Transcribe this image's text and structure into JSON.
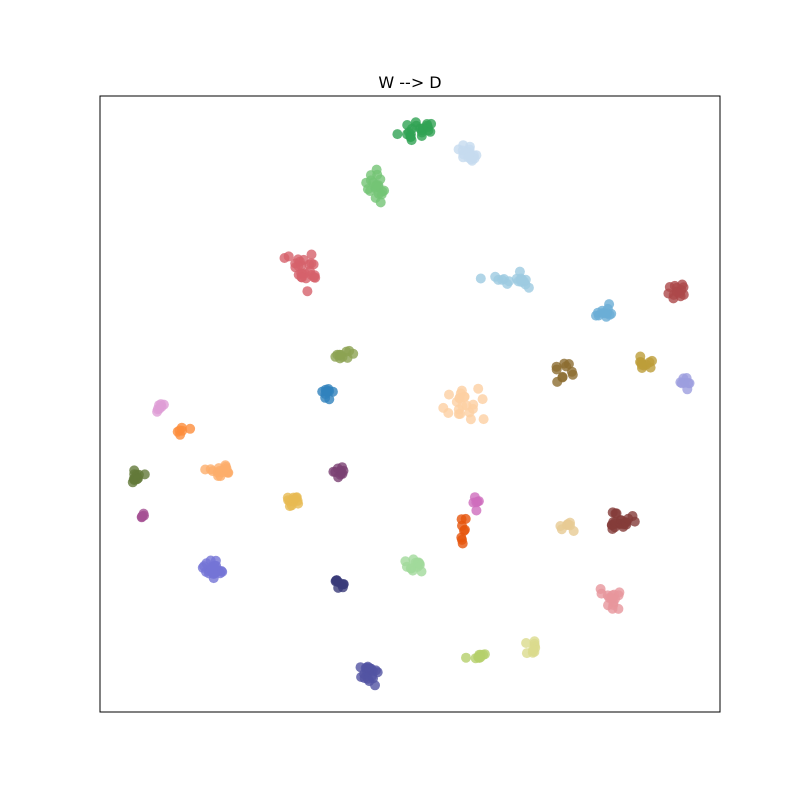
{
  "chart_data": {
    "type": "scatter",
    "title": "W --> D",
    "xlabel": "",
    "ylabel": "",
    "xlim": [
      0,
      100
    ],
    "ylim": [
      0,
      100
    ],
    "grid": false,
    "show_ticks": false,
    "series": [
      {
        "color": "#31a354",
        "center": [
          51.3,
          94.5
        ],
        "spread": [
          2.2,
          1.6
        ],
        "n": 22,
        "seed": 11
      },
      {
        "color": "#c6dbef",
        "center": [
          59.8,
          90.6
        ],
        "spread": [
          1.8,
          1.2
        ],
        "n": 16,
        "seed": 12
      },
      {
        "color": "#74c476",
        "center": [
          44.5,
          85.3
        ],
        "spread": [
          1.6,
          2.2
        ],
        "n": 20,
        "seed": 13
      },
      {
        "color": "#d6616b",
        "center": [
          33.6,
          72.2
        ],
        "spread": [
          2.2,
          2.0
        ],
        "n": 26,
        "seed": 14
      },
      {
        "color": "#9ecae1",
        "center": [
          67.1,
          70.1
        ],
        "spread": [
          3.0,
          0.9
        ],
        "n": 18,
        "seed": 15
      },
      {
        "color": "#ad494a",
        "center": [
          93.2,
          68.3
        ],
        "spread": [
          1.2,
          1.2
        ],
        "n": 14,
        "seed": 16
      },
      {
        "color": "#6baed6",
        "center": [
          81.3,
          65.0
        ],
        "spread": [
          1.2,
          1.3
        ],
        "n": 12,
        "seed": 17
      },
      {
        "color": "#8ca252",
        "center": [
          38.8,
          57.9
        ],
        "spread": [
          1.3,
          0.7
        ],
        "n": 10,
        "seed": 18
      },
      {
        "color": "#8c6d31",
        "center": [
          74.5,
          55.6
        ],
        "spread": [
          1.6,
          1.4
        ],
        "n": 10,
        "seed": 19
      },
      {
        "color": "#bd9e39",
        "center": [
          87.8,
          56.6
        ],
        "spread": [
          1.2,
          1.2
        ],
        "n": 10,
        "seed": 20
      },
      {
        "color": "#9c9ede",
        "center": [
          94.4,
          53.5
        ],
        "spread": [
          0.8,
          1.1
        ],
        "n": 8,
        "seed": 21
      },
      {
        "color": "#3182bd",
        "center": [
          36.5,
          51.9
        ],
        "spread": [
          0.8,
          1.0
        ],
        "n": 10,
        "seed": 22
      },
      {
        "color": "#fdd0a2",
        "center": [
          59.6,
          49.7
        ],
        "spread": [
          2.6,
          2.1
        ],
        "n": 22,
        "seed": 23
      },
      {
        "color": "#de9ed6",
        "center": [
          9.7,
          49.4
        ],
        "spread": [
          0.5,
          0.7
        ],
        "n": 7,
        "seed": 24
      },
      {
        "color": "#fd8d3c",
        "center": [
          13.5,
          45.6
        ],
        "spread": [
          1.0,
          0.5
        ],
        "n": 6,
        "seed": 25
      },
      {
        "color": "#fdae6b",
        "center": [
          19.6,
          39.5
        ],
        "spread": [
          2.2,
          1.0
        ],
        "n": 18,
        "seed": 26
      },
      {
        "color": "#637939",
        "center": [
          5.6,
          38.3
        ],
        "spread": [
          1.0,
          1.0
        ],
        "n": 12,
        "seed": 27
      },
      {
        "color": "#7b4173",
        "center": [
          38.9,
          39.2
        ],
        "spread": [
          0.9,
          0.9
        ],
        "n": 10,
        "seed": 28
      },
      {
        "color": "#e7ba52",
        "center": [
          30.6,
          34.3
        ],
        "spread": [
          1.5,
          0.9
        ],
        "n": 12,
        "seed": 29
      },
      {
        "color": "#a55194",
        "center": [
          6.8,
          31.8
        ],
        "spread": [
          0.3,
          0.6
        ],
        "n": 5,
        "seed": 30
      },
      {
        "color": "#ce6dbd",
        "center": [
          60.6,
          33.7
        ],
        "spread": [
          0.6,
          0.9
        ],
        "n": 6,
        "seed": 31
      },
      {
        "color": "#e6550d",
        "center": [
          58.6,
          29.0
        ],
        "spread": [
          0.6,
          2.0
        ],
        "n": 8,
        "seed": 32
      },
      {
        "color": "#e7cb94",
        "center": [
          75.6,
          29.9
        ],
        "spread": [
          1.2,
          1.0
        ],
        "n": 8,
        "seed": 33
      },
      {
        "color": "#843c39",
        "center": [
          83.8,
          30.9
        ],
        "spread": [
          1.7,
          1.3
        ],
        "n": 22,
        "seed": 34
      },
      {
        "color": "#7474d6",
        "center": [
          18.4,
          23.0
        ],
        "spread": [
          1.7,
          1.7
        ],
        "n": 24,
        "seed": 35
      },
      {
        "color": "#a1d99b",
        "center": [
          50.8,
          23.8
        ],
        "spread": [
          1.6,
          0.9
        ],
        "n": 14,
        "seed": 36
      },
      {
        "color": "#393b79",
        "center": [
          38.7,
          20.7
        ],
        "spread": [
          0.8,
          0.6
        ],
        "n": 10,
        "seed": 37
      },
      {
        "color": "#e7969c",
        "center": [
          82.1,
          18.3
        ],
        "spread": [
          1.4,
          2.0
        ],
        "n": 16,
        "seed": 38
      },
      {
        "color": "#dbdb8d",
        "center": [
          69.6,
          10.5
        ],
        "spread": [
          1.2,
          1.1
        ],
        "n": 10,
        "seed": 39
      },
      {
        "color": "#b5cf6b",
        "center": [
          60.8,
          8.9
        ],
        "spread": [
          1.2,
          0.6
        ],
        "n": 10,
        "seed": 40
      },
      {
        "color": "#5254a3",
        "center": [
          43.4,
          6.3
        ],
        "spread": [
          1.4,
          1.4
        ],
        "n": 24,
        "seed": 41
      }
    ]
  }
}
